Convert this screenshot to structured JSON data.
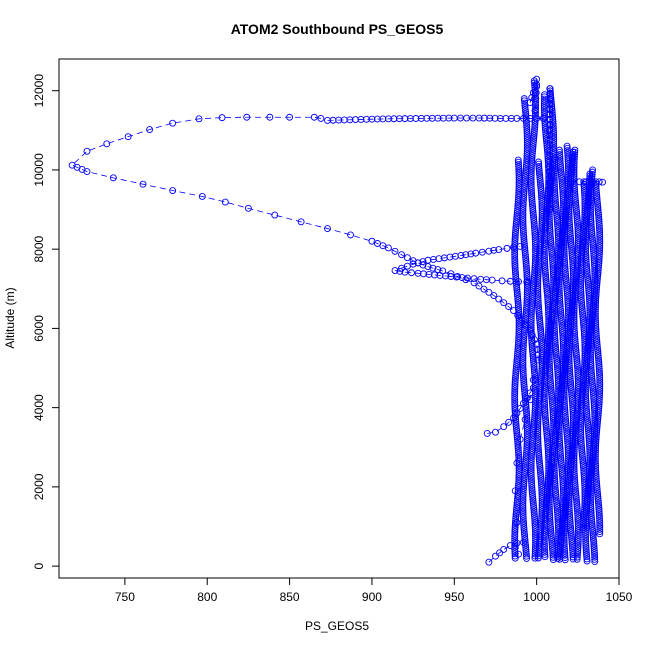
{
  "chart_data": {
    "type": "scatter",
    "title": "ATOM2 Southbound PS_GEOS5",
    "xlabel": "PS_GEOS5",
    "ylabel": "Altitude (m)",
    "xlim": [
      710,
      1050
    ],
    "ylim": [
      -300,
      12800
    ],
    "xticks": [
      750,
      800,
      850,
      900,
      950,
      1000,
      1050
    ],
    "yticks": [
      0,
      2000,
      4000,
      6000,
      8000,
      10000,
      12000
    ],
    "grid": false,
    "legend": "none",
    "marker": "open-circle",
    "line_style": "dashed",
    "color": "#0000ff",
    "series": [
      {
        "note_points": "ascending/descending flight profile, pressure vs altitude",
        "x": [
          869,
          865,
          850,
          838,
          824,
          809,
          795,
          779,
          765,
          752,
          739,
          727,
          718,
          727,
          743,
          761,
          779,
          797,
          811,
          825,
          841,
          857,
          873,
          887,
          900,
          910,
          918,
          925,
          931,
          937,
          943,
          948,
          952,
          957,
          962,
          968,
          974,
          980,
          986,
          991,
          996,
          1000,
          1001,
          998,
          996,
          993,
          990,
          988,
          987,
          988,
          989
        ],
        "y": [
          11300,
          11330,
          11330,
          11330,
          11330,
          11320,
          11290,
          11180,
          11020,
          10840,
          10660,
          10470,
          10120,
          9960,
          9800,
          9640,
          9480,
          9330,
          9190,
          9030,
          8860,
          8690,
          8520,
          8360,
          8200,
          8030,
          7860,
          7710,
          7600,
          7520,
          7450,
          7380,
          7310,
          7230,
          7150,
          6990,
          6830,
          6650,
          6450,
          6210,
          5950,
          5600,
          5200,
          4700,
          4200,
          3700,
          3200,
          2600,
          1900,
          1100,
          300
        ]
      },
      {
        "x": [
          914,
          920,
          928,
          938,
          948,
          958,
          966,
          973,
          979,
          984,
          989,
          994
        ],
        "y": [
          7460,
          7420,
          7390,
          7350,
          7310,
          7270,
          7240,
          7220,
          7200,
          7190,
          7180,
          7170
        ]
      },
      {
        "x": [
          918,
          925,
          934,
          944,
          954,
          963,
          971,
          977,
          982,
          986,
          990
        ],
        "y": [
          7520,
          7620,
          7720,
          7780,
          7840,
          7900,
          7950,
          7990,
          8020,
          8050,
          8070
        ]
      },
      {
        "x": [
          970,
          975,
          980,
          986,
          990,
          994,
          998
        ],
        "y": [
          3350,
          3380,
          3520,
          3740,
          3980,
          4240,
          4500
        ]
      },
      {
        "x": [
          873,
          890,
          910,
          930,
          950,
          965,
          978,
          988,
          996,
          1004
        ],
        "y": [
          11250,
          11270,
          11290,
          11300,
          11310,
          11310,
          11300,
          11300,
          11300,
          11300
        ]
      },
      {
        "x": [
          971,
          975,
          980,
          984,
          988,
          992
        ],
        "y": [
          100,
          250,
          420,
          520,
          580,
          600
        ]
      },
      {
        "x": [
          996,
          998,
          1000,
          1000,
          1000,
          999
        ],
        "y": [
          11700,
          11950,
          12150,
          12290,
          12100,
          11500
        ]
      },
      {
        "x": [
          1008,
          1008,
          1008,
          1008,
          1008
        ],
        "y": [
          9000,
          10500,
          11800,
          12050,
          11000
        ]
      },
      {
        "x": [
          1021,
          1026,
          1030,
          1034,
          1038,
          1040
        ],
        "y": [
          9700,
          9700,
          9700,
          9700,
          9700,
          9690
        ]
      }
    ],
    "dense_columns": [
      {
        "x": 988,
        "y": [
          150,
          10250
        ]
      },
      {
        "x": 993,
        "y": [
          150,
          11800
        ]
      },
      {
        "x": 998,
        "y": [
          150,
          12250
        ]
      },
      {
        "x": 1002,
        "y": [
          150,
          10200
        ]
      },
      {
        "x": 1006,
        "y": [
          200,
          11900
        ]
      },
      {
        "x": 1009,
        "y": [
          150,
          12050
        ]
      },
      {
        "x": 1012,
        "y": [
          150,
          10300
        ]
      },
      {
        "x": 1015,
        "y": [
          150,
          10500
        ]
      },
      {
        "x": 1018,
        "y": [
          150,
          10600
        ]
      },
      {
        "x": 1021,
        "y": [
          150,
          10450
        ]
      },
      {
        "x": 1024,
        "y": [
          150,
          10500
        ]
      },
      {
        "x": 1028,
        "y": [
          900,
          9700
        ]
      },
      {
        "x": 1031,
        "y": [
          100,
          9900
        ]
      },
      {
        "x": 1034,
        "y": [
          100,
          10000
        ]
      },
      {
        "x": 1037,
        "y": [
          800,
          9700
        ]
      }
    ]
  }
}
